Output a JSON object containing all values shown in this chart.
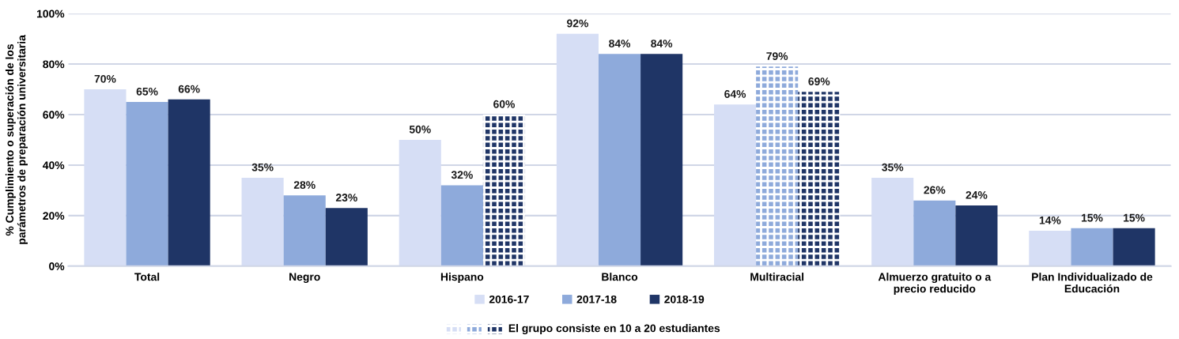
{
  "chart_data": {
    "type": "bar",
    "ylabel": "% Cumplimiento o superación de los\nparámetros de preparación universitaria",
    "categories": [
      "Total",
      "Negro",
      "Hispano",
      "Blanco",
      "Multiracial",
      "Almuerzo gratuito o a\nprecio reducido",
      "Plan Individualizado de\nEducación"
    ],
    "series": [
      {
        "name": "2016-17",
        "color": "#d6def5",
        "values": [
          70,
          35,
          50,
          92,
          64,
          35,
          14
        ],
        "value_labels": [
          "70%",
          "35%",
          "50%",
          "92%",
          "64%",
          "35%",
          "14%"
        ]
      },
      {
        "name": "2017-18",
        "color": "#8eaadb",
        "values": [
          65,
          28,
          32,
          84,
          null,
          26,
          15
        ],
        "value_labels": [
          "65%",
          "28%",
          "32%",
          "84%",
          null,
          "26%",
          "15%"
        ]
      },
      {
        "name": "2018-19",
        "color": "#1f3566",
        "values": [
          66,
          23,
          null,
          84,
          null,
          24,
          15
        ],
        "value_labels": [
          "66%",
          "23%",
          null,
          "84%",
          null,
          "24%",
          "15%"
        ]
      },
      {
        "color": "#d6def5",
        "values": [
          null,
          null,
          null,
          null,
          null,
          null,
          null
        ],
        "value_labels": [
          null,
          null,
          null,
          null,
          null,
          null,
          null
        ]
      },
      {
        "color": "#8eaadb",
        "values": [
          null,
          null,
          null,
          null,
          79,
          null,
          null
        ],
        "value_labels": [
          null,
          null,
          null,
          null,
          "79%",
          null,
          null
        ]
      },
      {
        "name": "El grupo consiste en 10 a 20 estudiantes",
        "color": "#1f3566",
        "values": [
          null,
          null,
          60,
          null,
          69,
          null,
          null
        ],
        "value_labels": [
          null,
          null,
          "60%",
          null,
          "69%",
          null,
          null
        ]
      }
    ],
    "ylim": [
      0,
      100
    ],
    "yticks": [
      {
        "value": 0,
        "label": "0%"
      },
      {
        "value": 20,
        "label": "20%"
      },
      {
        "value": 40,
        "label": "40%"
      },
      {
        "value": 60,
        "label": "60%"
      },
      {
        "value": 80,
        "label": "80%"
      },
      {
        "value": 100,
        "label": "100%"
      }
    ],
    "grid": "y",
    "legend": "bottom"
  }
}
